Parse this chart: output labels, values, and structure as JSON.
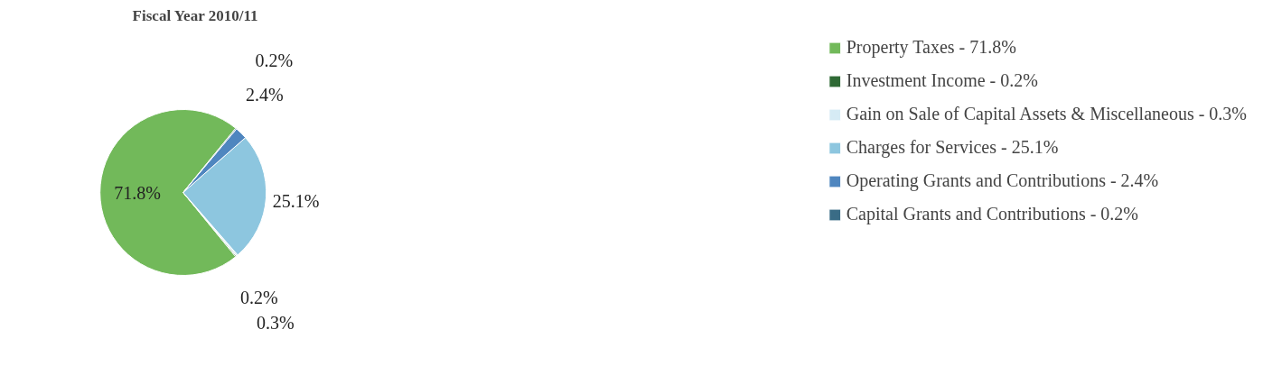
{
  "chart_data": {
    "type": "pie",
    "title": "Fiscal Year 2010/11",
    "categories": [
      "Property Taxes - 71.8%",
      "Investment Income - 0.2%",
      "Gain on Sale of Capital Assets & Miscellaneous - 0.3%",
      "Charges for Services - 25.1%",
      "Operating Grants and Contributions - 2.4%",
      "Capital Grants and Contributions - 0.2%"
    ],
    "values": [
      71.8,
      0.2,
      0.3,
      25.1,
      2.4,
      0.2
    ],
    "value_labels": [
      "71.8%",
      "0.2%",
      "0.3%",
      "25.1%",
      "2.4%",
      "0.2%"
    ],
    "colors": [
      "#72b95a",
      "#2f6a35",
      "#d6ebf5",
      "#8dc6df",
      "#4f86bf",
      "#3a6c86"
    ],
    "legend": "right"
  }
}
